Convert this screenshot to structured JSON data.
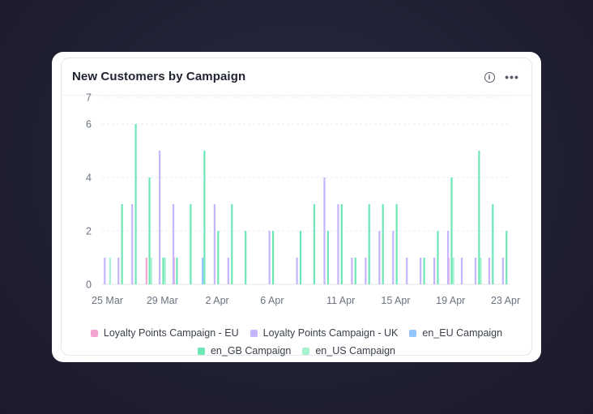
{
  "card": {
    "title": "New Customers by Campaign",
    "info_icon": "info-icon",
    "more_icon": "more-horizontal-icon",
    "info_glyph": "i",
    "more_glyph": "•••"
  },
  "chart_data": {
    "type": "bar",
    "title": "New Customers by Campaign",
    "xlabel": "",
    "ylabel": "",
    "ylim": [
      0,
      7
    ],
    "y_ticks": [
      0,
      2,
      4,
      6,
      7
    ],
    "grid": true,
    "legend_position": "bottom",
    "x_tick_labels": [
      {
        "label": "25 Mar",
        "day": 0
      },
      {
        "label": "29 Mar",
        "day": 4
      },
      {
        "label": "2 Apr",
        "day": 8
      },
      {
        "label": "6 Apr",
        "day": 12
      },
      {
        "label": "11 Apr",
        "day": 17
      },
      {
        "label": "15 Apr",
        "day": 21
      },
      {
        "label": "19 Apr",
        "day": 25
      },
      {
        "label": "23 Apr",
        "day": 29
      }
    ],
    "series": [
      {
        "name": "Loyalty Points Campaign - EU",
        "color": "#f4a6d0",
        "points": [
          {
            "day": 3,
            "value": 1
          },
          {
            "day": 5,
            "value": 1
          },
          {
            "day": 25,
            "value": 1
          }
        ]
      },
      {
        "name": "Loyalty Points Campaign - UK",
        "color": "#c4b5fd",
        "points": [
          {
            "day": 0,
            "value": 1
          },
          {
            "day": 1,
            "value": 1
          },
          {
            "day": 2,
            "value": 3
          },
          {
            "day": 4,
            "value": 5
          },
          {
            "day": 5,
            "value": 3
          },
          {
            "day": 8,
            "value": 3
          },
          {
            "day": 9,
            "value": 1
          },
          {
            "day": 12,
            "value": 2
          },
          {
            "day": 14,
            "value": 1
          },
          {
            "day": 16,
            "value": 4
          },
          {
            "day": 17,
            "value": 3
          },
          {
            "day": 18,
            "value": 1
          },
          {
            "day": 19,
            "value": 1
          },
          {
            "day": 20,
            "value": 2
          },
          {
            "day": 21,
            "value": 2
          },
          {
            "day": 22,
            "value": 1
          },
          {
            "day": 23,
            "value": 1
          },
          {
            "day": 24,
            "value": 1
          },
          {
            "day": 25,
            "value": 2
          },
          {
            "day": 26,
            "value": 1
          },
          {
            "day": 27,
            "value": 1
          },
          {
            "day": 28,
            "value": 1
          },
          {
            "day": 29,
            "value": 1
          }
        ]
      },
      {
        "name": "en_EU Campaign",
        "color": "#93c5fd",
        "points": [
          {
            "day": 7,
            "value": 1
          }
        ]
      },
      {
        "name": "en_GB Campaign",
        "color": "#6ee7b7",
        "points": [
          {
            "day": 1,
            "value": 3
          },
          {
            "day": 2,
            "value": 6
          },
          {
            "day": 3,
            "value": 4
          },
          {
            "day": 4,
            "value": 1
          },
          {
            "day": 5,
            "value": 1
          },
          {
            "day": 6,
            "value": 3
          },
          {
            "day": 7,
            "value": 5
          },
          {
            "day": 8,
            "value": 2
          },
          {
            "day": 9,
            "value": 3
          },
          {
            "day": 10,
            "value": 2
          },
          {
            "day": 12,
            "value": 2
          },
          {
            "day": 14,
            "value": 2
          },
          {
            "day": 15,
            "value": 3
          },
          {
            "day": 16,
            "value": 2
          },
          {
            "day": 17,
            "value": 3
          },
          {
            "day": 18,
            "value": 1
          },
          {
            "day": 19,
            "value": 3
          },
          {
            "day": 20,
            "value": 3
          },
          {
            "day": 21,
            "value": 3
          },
          {
            "day": 23,
            "value": 1
          },
          {
            "day": 24,
            "value": 2
          },
          {
            "day": 25,
            "value": 4
          },
          {
            "day": 27,
            "value": 5
          },
          {
            "day": 28,
            "value": 3
          },
          {
            "day": 29,
            "value": 2
          }
        ]
      },
      {
        "name": "en_US Campaign",
        "color": "#a7f3d0",
        "points": [
          {
            "day": 0,
            "value": 1
          },
          {
            "day": 3,
            "value": 1
          },
          {
            "day": 4,
            "value": 1
          },
          {
            "day": 25,
            "value": 1
          },
          {
            "day": 27,
            "value": 1
          }
        ]
      }
    ]
  }
}
